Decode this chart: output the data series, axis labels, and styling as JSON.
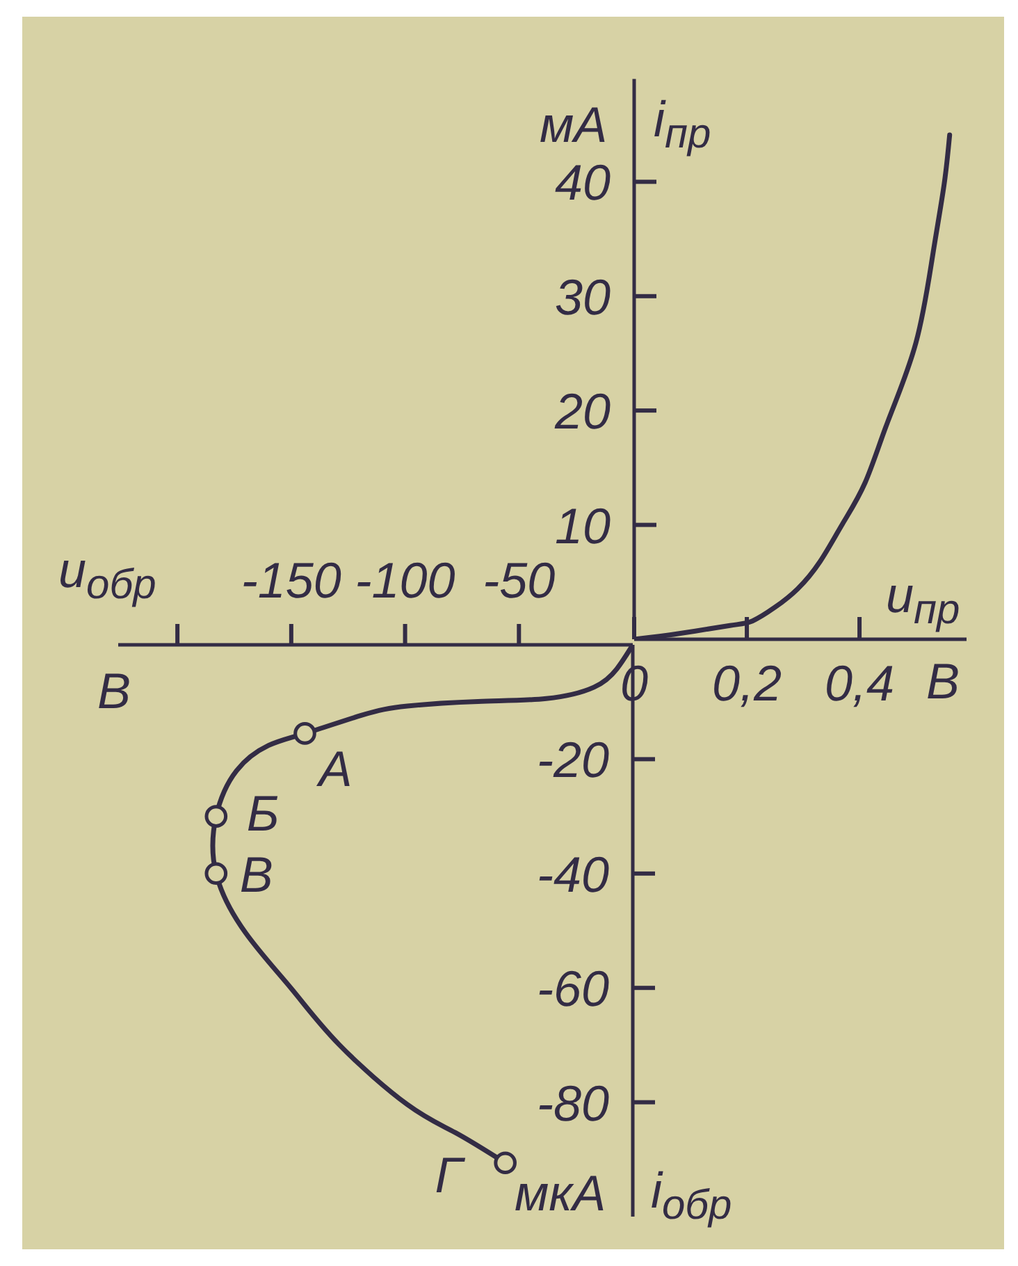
{
  "chart_data": [
    {
      "type": "line",
      "color": "#332c45",
      "xlabel": "u$_{пр}$",
      "ylabel": "i$_{пр}$",
      "annotations": [
        "мА",
        "В"
      ],
      "x": [
        0,
        0.08,
        0.17,
        0.21,
        0.25,
        0.29,
        0.33,
        0.37,
        0.41,
        0.45,
        0.5,
        0.53,
        0.55,
        0.56
      ],
      "values": [
        0,
        0.5,
        1.2,
        1.6,
        2.8,
        4.4,
        6.8,
        10.1,
        13.7,
        19,
        25.9,
        33.6,
        39.7,
        44.1
      ],
      "xlim": [
        0,
        0.59
      ],
      "xticks": [
        0,
        {
          "value": 0.2,
          "label": "0,2"
        },
        {
          "value": 0.4,
          "label": "0,4"
        }
      ],
      "ylim": [
        0,
        49
      ],
      "yticks": [
        10,
        20,
        30,
        40
      ]
    },
    {
      "type": "line",
      "xlabel": "u$_{обр}$",
      "ylabel": "i$_{обр}$",
      "annotations": [
        "мкА",
        "В",
        {
          "text": "А",
          "x": -144,
          "y": -15.5
        },
        {
          "text": "Б",
          "x": -183,
          "y": -30
        },
        {
          "text": "В",
          "x": -183,
          "y": -40
        },
        {
          "text": "Г",
          "x": -56,
          "y": -90.6
        }
      ],
      "series": [
        {
          "type": "line",
          "color": "#332c45",
          "x": [
            0,
            -7,
            -17,
            -38,
            -68,
            -99,
            -119,
            -144,
            -160,
            -174,
            -183,
            -183,
            -170,
            -150,
            -129,
            -99,
            -78,
            -56
          ],
          "values": [
            0,
            -4.2,
            -7.4,
            -9.4,
            -9.9,
            -10.7,
            -12.3,
            -15.5,
            -17.6,
            -22,
            -30,
            -40,
            -50.4,
            -60.1,
            -69.9,
            -80.4,
            -85.3,
            -90.6
          ]
        },
        {
          "type": "scatter",
          "color": "#332c45",
          "marker": "circle",
          "x": [
            -144,
            -183,
            -183,
            -56
          ],
          "values": [
            -15.5,
            -30,
            -40,
            -90.6
          ]
        }
      ],
      "xlim": [
        -226,
        0
      ],
      "xticks": [
        {
          "value": -200,
          "label": null
        },
        -150,
        -100,
        -50
      ],
      "ylim": [
        -100,
        0
      ],
      "yticks": [
        -80,
        -60,
        -40,
        -20
      ]
    }
  ]
}
